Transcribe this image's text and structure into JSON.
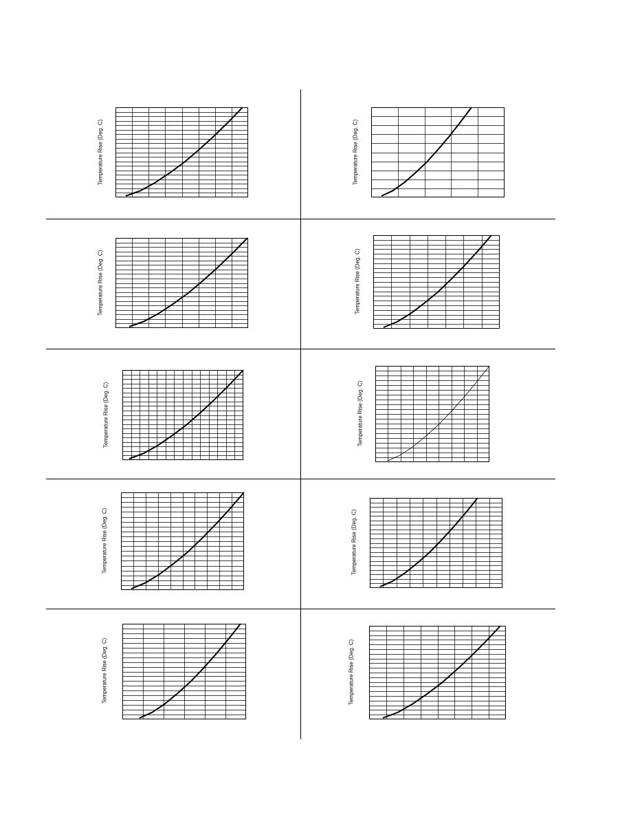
{
  "chart_data": [
    {
      "type": "line",
      "ylabel": "Temperature Rise (Deg. C)",
      "grid": true,
      "series": [
        {
          "x": [
            0,
            1,
            2,
            3,
            4,
            5,
            6,
            7,
            8
          ],
          "values": [
            0.0,
            0.06,
            0.15,
            0.26,
            0.38,
            0.52,
            0.67,
            0.83,
            1.0
          ]
        }
      ]
    },
    {
      "type": "line",
      "ylabel": "Temperature Rise (Deg. C)",
      "grid": true,
      "series": [
        {
          "x": [
            0,
            1,
            2,
            3,
            4,
            5,
            6,
            7,
            8
          ],
          "values": [
            0.0,
            0.06,
            0.15,
            0.26,
            0.38,
            0.52,
            0.67,
            0.83,
            1.0
          ]
        }
      ]
    },
    {
      "type": "line",
      "ylabel": "Temperature Rise (Deg. C)",
      "grid": true,
      "series": [
        {
          "x": [
            0,
            1,
            2,
            3,
            4,
            5,
            6,
            7,
            8
          ],
          "values": [
            0.0,
            0.06,
            0.15,
            0.26,
            0.38,
            0.52,
            0.67,
            0.83,
            1.0
          ]
        }
      ]
    },
    {
      "type": "line",
      "ylabel": "Temperature Rise (Deg. C)",
      "grid": true,
      "series": [
        {
          "x": [
            0,
            1,
            2,
            3,
            4,
            5,
            6,
            7,
            8
          ],
          "values": [
            0.0,
            0.06,
            0.15,
            0.26,
            0.38,
            0.52,
            0.67,
            0.83,
            1.0
          ]
        }
      ]
    },
    {
      "type": "line",
      "ylabel": "Temperature Rise (Deg. C)",
      "grid": true,
      "series": [
        {
          "x": [
            0,
            1,
            2,
            3,
            4,
            5,
            6,
            7,
            8
          ],
          "values": [
            0.0,
            0.06,
            0.15,
            0.26,
            0.38,
            0.52,
            0.67,
            0.83,
            1.0
          ]
        }
      ]
    },
    {
      "type": "line",
      "ylabel": "Temperature Rise (Deg. C)",
      "grid": true,
      "series": [
        {
          "x": [
            0,
            1,
            2,
            3,
            4,
            5,
            6,
            7,
            8
          ],
          "values": [
            0.0,
            0.06,
            0.15,
            0.26,
            0.38,
            0.52,
            0.67,
            0.83,
            1.0
          ]
        }
      ]
    },
    {
      "type": "line",
      "ylabel": "Temperature Rise (Deg. C)",
      "grid": true,
      "series": [
        {
          "x": [
            0,
            1,
            2,
            3,
            4,
            5,
            6,
            7,
            8
          ],
          "values": [
            0.0,
            0.06,
            0.15,
            0.26,
            0.38,
            0.52,
            0.67,
            0.83,
            1.0
          ]
        }
      ]
    },
    {
      "type": "line",
      "ylabel": "Temperature Rise (Deg. C)",
      "grid": true,
      "series": [
        {
          "x": [
            0,
            1,
            2,
            3,
            4,
            5,
            6,
            7,
            8
          ],
          "values": [
            0.0,
            0.06,
            0.15,
            0.26,
            0.38,
            0.52,
            0.67,
            0.83,
            1.0
          ]
        }
      ]
    },
    {
      "type": "line",
      "ylabel": "Temperature Rise (Deg. C)",
      "grid": true,
      "series": [
        {
          "x": [
            0,
            1,
            2,
            3,
            4,
            5,
            6,
            7,
            8
          ],
          "values": [
            0.0,
            0.06,
            0.15,
            0.26,
            0.38,
            0.52,
            0.67,
            0.83,
            1.0
          ]
        }
      ]
    },
    {
      "type": "line",
      "ylabel": "Temperature Rise (Deg. C)",
      "grid": true,
      "series": [
        {
          "x": [
            0,
            1,
            2,
            3,
            4,
            5,
            6,
            7,
            8
          ],
          "values": [
            0.0,
            0.06,
            0.15,
            0.26,
            0.38,
            0.52,
            0.67,
            0.83,
            1.0
          ]
        }
      ]
    }
  ]
}
